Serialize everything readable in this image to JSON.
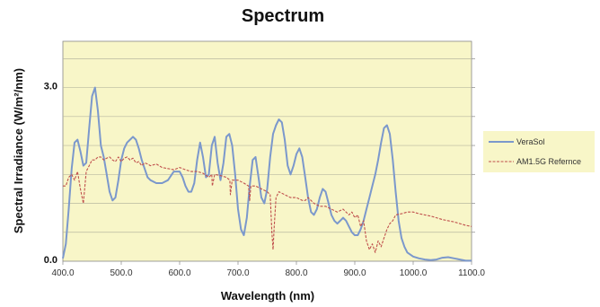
{
  "chart_data": {
    "type": "line",
    "title": "Spectrum",
    "xlabel": "Wavelength (nm)",
    "ylabel": "Spectral Irradiance (W/m²/nm)",
    "xlim": [
      400,
      1100
    ],
    "ylim": [
      0,
      3.8
    ],
    "x_ticks": [
      400,
      500,
      600,
      700,
      800,
      900,
      1000,
      1100
    ],
    "x_tick_labels": [
      "400.0",
      "500.0",
      "600.0",
      "700.0",
      "800.0",
      "900.0",
      "1000.0",
      "1100.0"
    ],
    "y_ticks": [
      0,
      3
    ],
    "y_tick_labels": [
      "0.0",
      "3.0"
    ],
    "grid": true,
    "legend_position": "right",
    "colors": {
      "plot_background": "#f8f6c8",
      "grid": "#b8b8a0",
      "verasol": "#7b98cc",
      "am15g": "#c0504d"
    },
    "series": [
      {
        "name": "VeraSol",
        "style": "solid",
        "x": [
          400,
          405,
          410,
          415,
          420,
          425,
          430,
          435,
          440,
          445,
          450,
          455,
          460,
          465,
          470,
          475,
          480,
          485,
          490,
          495,
          500,
          505,
          510,
          515,
          520,
          525,
          530,
          535,
          540,
          545,
          550,
          560,
          570,
          580,
          590,
          600,
          605,
          610,
          615,
          620,
          625,
          630,
          635,
          640,
          645,
          650,
          655,
          660,
          665,
          670,
          675,
          680,
          685,
          690,
          695,
          700,
          705,
          710,
          715,
          720,
          725,
          730,
          735,
          740,
          745,
          750,
          755,
          760,
          765,
          770,
          775,
          780,
          785,
          790,
          795,
          800,
          805,
          810,
          815,
          820,
          825,
          830,
          835,
          840,
          845,
          850,
          855,
          860,
          865,
          870,
          875,
          880,
          885,
          890,
          895,
          900,
          905,
          910,
          915,
          920,
          925,
          930,
          935,
          940,
          945,
          950,
          955,
          960,
          965,
          970,
          975,
          980,
          985,
          990,
          1000,
          1010,
          1020,
          1030,
          1040,
          1050,
          1060,
          1070,
          1080,
          1090,
          1100
        ],
        "y": [
          0.05,
          0.3,
          0.9,
          1.6,
          2.05,
          2.1,
          1.9,
          1.65,
          1.7,
          2.3,
          2.85,
          3.0,
          2.6,
          2.0,
          1.8,
          1.5,
          1.2,
          1.05,
          1.1,
          1.4,
          1.75,
          1.95,
          2.05,
          2.1,
          2.15,
          2.1,
          1.95,
          1.75,
          1.6,
          1.45,
          1.4,
          1.35,
          1.35,
          1.4,
          1.55,
          1.55,
          1.45,
          1.3,
          1.2,
          1.2,
          1.35,
          1.75,
          2.05,
          1.8,
          1.45,
          1.5,
          2.0,
          2.15,
          1.7,
          1.4,
          1.7,
          2.15,
          2.2,
          2.0,
          1.5,
          0.9,
          0.55,
          0.45,
          0.75,
          1.3,
          1.75,
          1.8,
          1.45,
          1.1,
          1.0,
          1.25,
          1.8,
          2.2,
          2.35,
          2.45,
          2.4,
          2.1,
          1.65,
          1.5,
          1.65,
          1.85,
          1.95,
          1.8,
          1.45,
          1.1,
          0.85,
          0.8,
          0.9,
          1.1,
          1.25,
          1.2,
          1.0,
          0.8,
          0.7,
          0.65,
          0.7,
          0.75,
          0.7,
          0.6,
          0.5,
          0.45,
          0.45,
          0.55,
          0.7,
          0.9,
          1.1,
          1.3,
          1.5,
          1.75,
          2.05,
          2.3,
          2.35,
          2.2,
          1.75,
          1.2,
          0.7,
          0.4,
          0.25,
          0.15,
          0.08,
          0.05,
          0.03,
          0.02,
          0.03,
          0.06,
          0.07,
          0.05,
          0.03,
          0.01,
          0.01
        ]
      },
      {
        "name": "AM1.5G Refernce",
        "style": "dashed",
        "x": [
          400,
          405,
          410,
          415,
          420,
          425,
          430,
          435,
          440,
          445,
          450,
          455,
          460,
          465,
          470,
          475,
          480,
          485,
          490,
          495,
          500,
          505,
          510,
          515,
          520,
          525,
          530,
          535,
          540,
          545,
          550,
          560,
          570,
          580,
          590,
          600,
          610,
          620,
          630,
          640,
          650,
          655,
          656,
          660,
          670,
          680,
          686,
          687,
          690,
          700,
          710,
          718,
          720,
          722,
          730,
          740,
          750,
          755,
          758,
          760,
          762,
          765,
          770,
          780,
          790,
          800,
          810,
          815,
          820,
          825,
          830,
          840,
          850,
          860,
          870,
          880,
          890,
          895,
          900,
          905,
          910,
          915,
          920,
          925,
          930,
          935,
          940,
          945,
          950,
          955,
          960,
          965,
          970,
          980,
          990,
          1000,
          1010,
          1020,
          1030,
          1040,
          1050,
          1060,
          1070,
          1080,
          1090,
          1100
        ],
        "y": [
          1.3,
          1.3,
          1.45,
          1.5,
          1.4,
          1.55,
          1.25,
          1.0,
          1.55,
          1.65,
          1.75,
          1.75,
          1.8,
          1.8,
          1.75,
          1.78,
          1.8,
          1.75,
          1.72,
          1.8,
          1.72,
          1.78,
          1.8,
          1.75,
          1.78,
          1.7,
          1.72,
          1.65,
          1.7,
          1.68,
          1.65,
          1.68,
          1.62,
          1.6,
          1.58,
          1.62,
          1.58,
          1.55,
          1.55,
          1.52,
          1.45,
          1.5,
          1.3,
          1.5,
          1.48,
          1.45,
          1.4,
          1.15,
          1.4,
          1.4,
          1.35,
          1.3,
          1.05,
          1.3,
          1.3,
          1.25,
          1.2,
          1.15,
          0.5,
          0.2,
          0.6,
          1.1,
          1.2,
          1.15,
          1.1,
          1.1,
          1.05,
          1.05,
          1.1,
          1.05,
          1.0,
          0.95,
          0.95,
          0.9,
          0.85,
          0.9,
          0.8,
          0.85,
          0.75,
          0.8,
          0.6,
          0.7,
          0.35,
          0.2,
          0.3,
          0.15,
          0.35,
          0.25,
          0.4,
          0.55,
          0.65,
          0.7,
          0.8,
          0.82,
          0.85,
          0.85,
          0.82,
          0.8,
          0.78,
          0.75,
          0.72,
          0.7,
          0.68,
          0.65,
          0.62,
          0.6
        ]
      }
    ]
  }
}
